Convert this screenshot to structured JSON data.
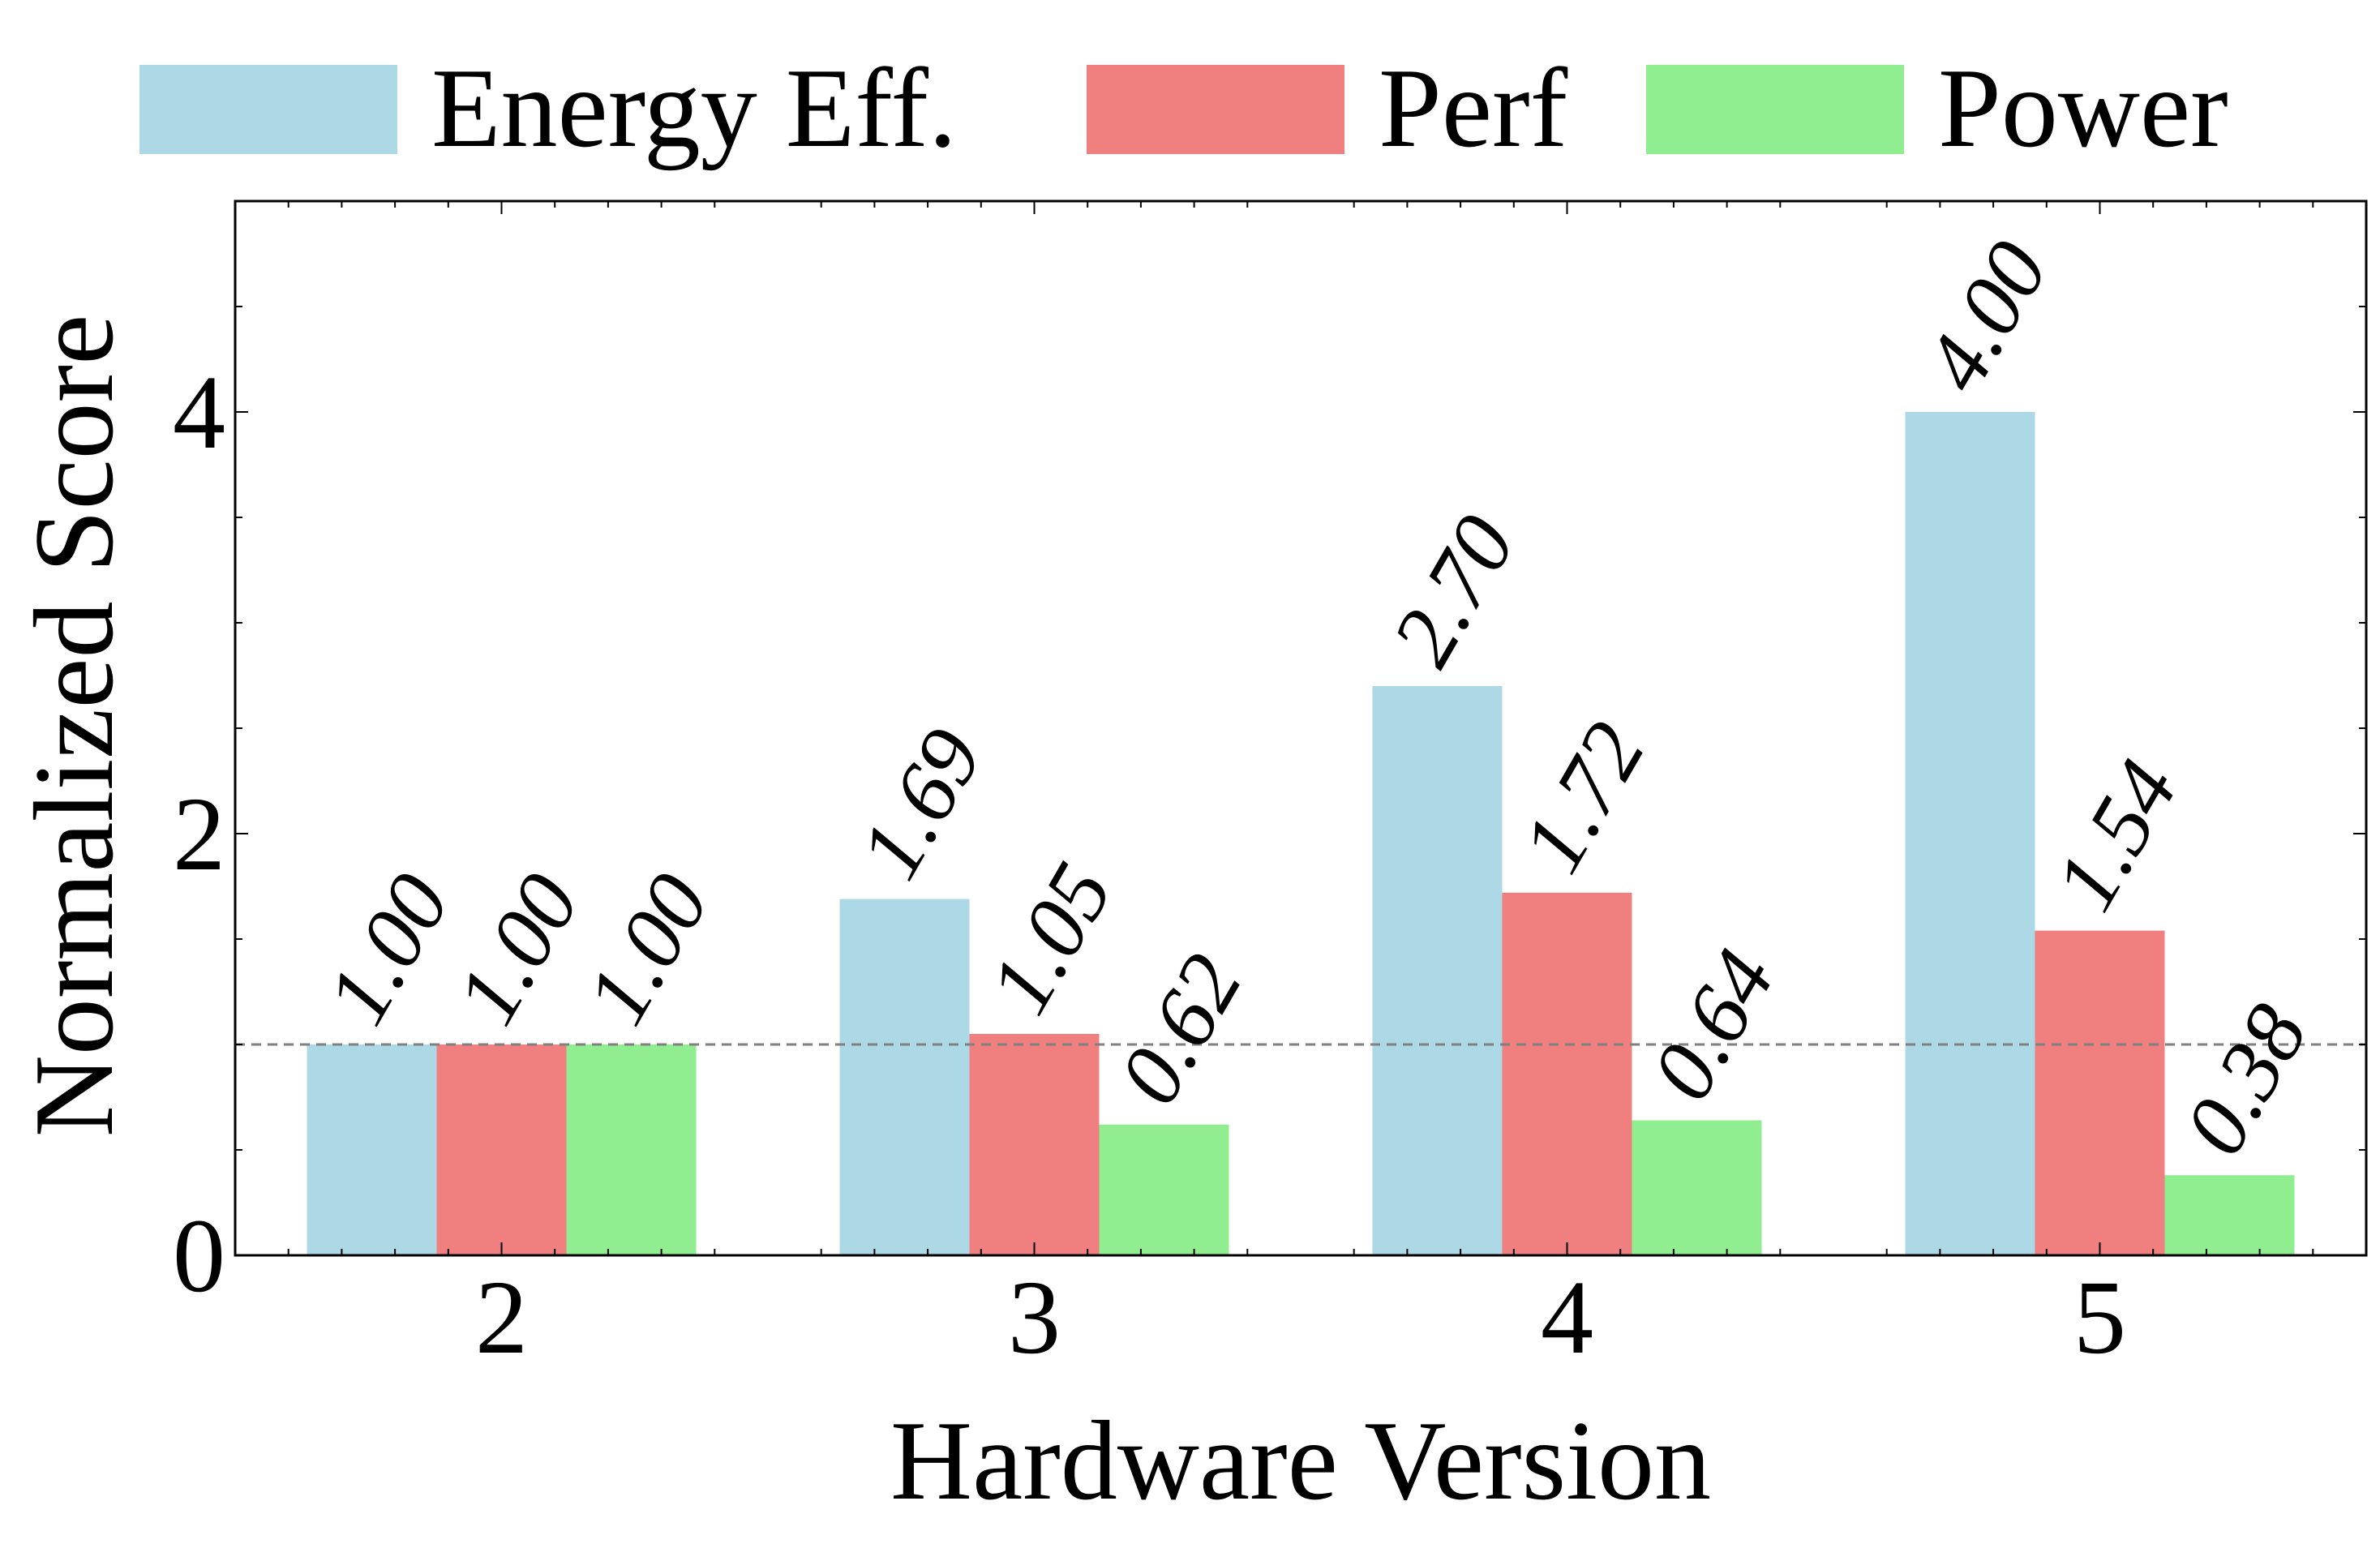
{
  "chart_data": {
    "type": "bar",
    "xlabel": "Hardware Version",
    "ylabel": "Normalized Score",
    "categories": [
      "2",
      "3",
      "4",
      "5"
    ],
    "series": [
      {
        "name": "Energy Eff.",
        "color": "#add8e6",
        "values": [
          1.0,
          1.69,
          2.7,
          4.0
        ],
        "labels": [
          "1.00",
          "1.69",
          "2.70",
          "4.00"
        ]
      },
      {
        "name": "Perf",
        "color": "#f08080",
        "values": [
          1.0,
          1.05,
          1.72,
          1.54
        ],
        "labels": [
          "1.00",
          "1.05",
          "1.72",
          "1.54"
        ]
      },
      {
        "name": "Power",
        "color": "#90ee90",
        "values": [
          1.0,
          0.62,
          0.64,
          0.38
        ],
        "labels": [
          "1.00",
          "0.62",
          "0.64",
          "0.38"
        ]
      }
    ],
    "ylim": [
      0,
      5
    ],
    "yticks": [
      0,
      2,
      4
    ],
    "ytick_labels": [
      "0",
      "2",
      "4"
    ],
    "reference_line": {
      "y": 1.0,
      "style": "dashed",
      "color": "#808080"
    },
    "legend": {
      "position": "top",
      "columns": 3
    },
    "grid": false
  }
}
